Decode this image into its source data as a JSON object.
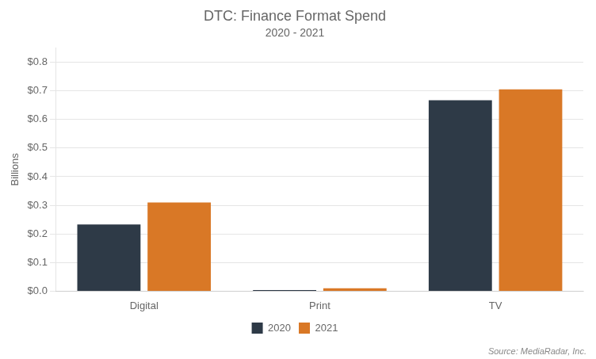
{
  "chart_data": {
    "type": "bar",
    "title": "DTC: Finance Format Spend",
    "subtitle": "2020 - 2021",
    "categories": [
      "Digital",
      "Print",
      "TV"
    ],
    "series": [
      {
        "name": "2020",
        "color": "#2E3A47",
        "values": [
          0.233,
          0.004,
          0.667
        ]
      },
      {
        "name": "2021",
        "color": "#D97826",
        "values": [
          0.31,
          0.01,
          0.705
        ]
      }
    ],
    "ylabel": "Billions",
    "ylim": [
      0,
      0.85
    ],
    "yticks": [
      {
        "value": 0.0,
        "label": "$0.0"
      },
      {
        "value": 0.1,
        "label": "$0.1"
      },
      {
        "value": 0.2,
        "label": "$0.2"
      },
      {
        "value": 0.3,
        "label": "$0.3"
      },
      {
        "value": 0.4,
        "label": "$0.4"
      },
      {
        "value": 0.5,
        "label": "$0.5"
      },
      {
        "value": 0.6,
        "label": "$0.6"
      },
      {
        "value": 0.7,
        "label": "$0.7"
      },
      {
        "value": 0.8,
        "label": "$0.8"
      }
    ],
    "grid": true,
    "legend": "bottom",
    "annotation": "Source: MediaRadar, Inc."
  }
}
